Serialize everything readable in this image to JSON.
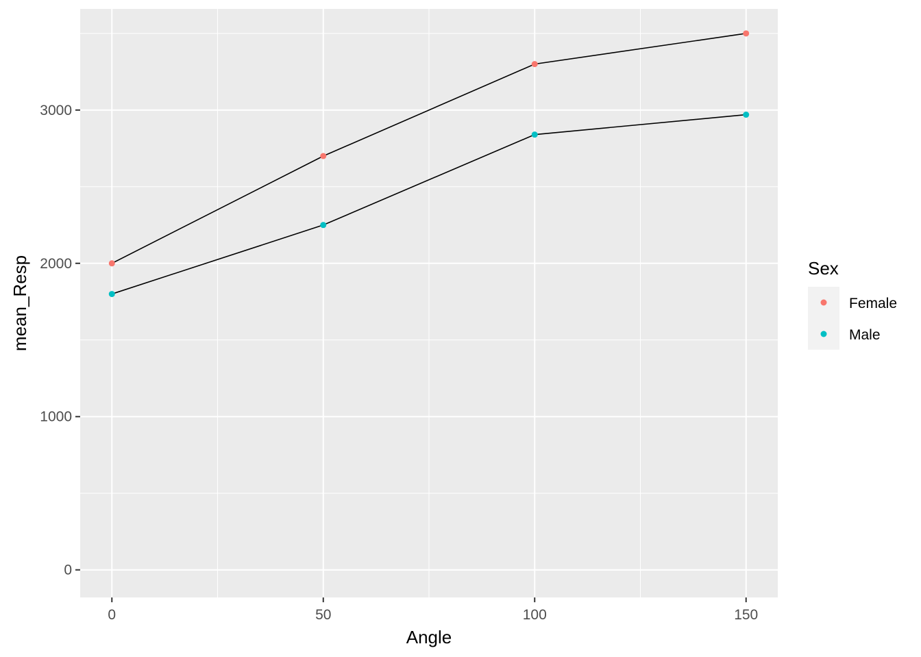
{
  "chart_data": {
    "type": "line",
    "title": "",
    "xlabel": "Angle",
    "ylabel": "mean_Resp",
    "x": [
      0,
      50,
      100,
      150
    ],
    "x_ticks": [
      0,
      50,
      100,
      150
    ],
    "y_ticks": [
      0,
      1000,
      2000,
      3000
    ],
    "xlim": [
      -7.5,
      157.5
    ],
    "ylim": [
      -180,
      3660
    ],
    "grid": true,
    "panel_background": "#ebebeb",
    "grid_color": "#ffffff",
    "line_color": "#000000",
    "series": [
      {
        "name": "Female",
        "color": "#f8766d",
        "values": [
          2000,
          2700,
          3300,
          3500
        ]
      },
      {
        "name": "Male",
        "color": "#00bfc4",
        "values": [
          1800,
          2250,
          2840,
          2970
        ]
      }
    ],
    "legend": {
      "title": "Sex",
      "position": "right"
    }
  }
}
